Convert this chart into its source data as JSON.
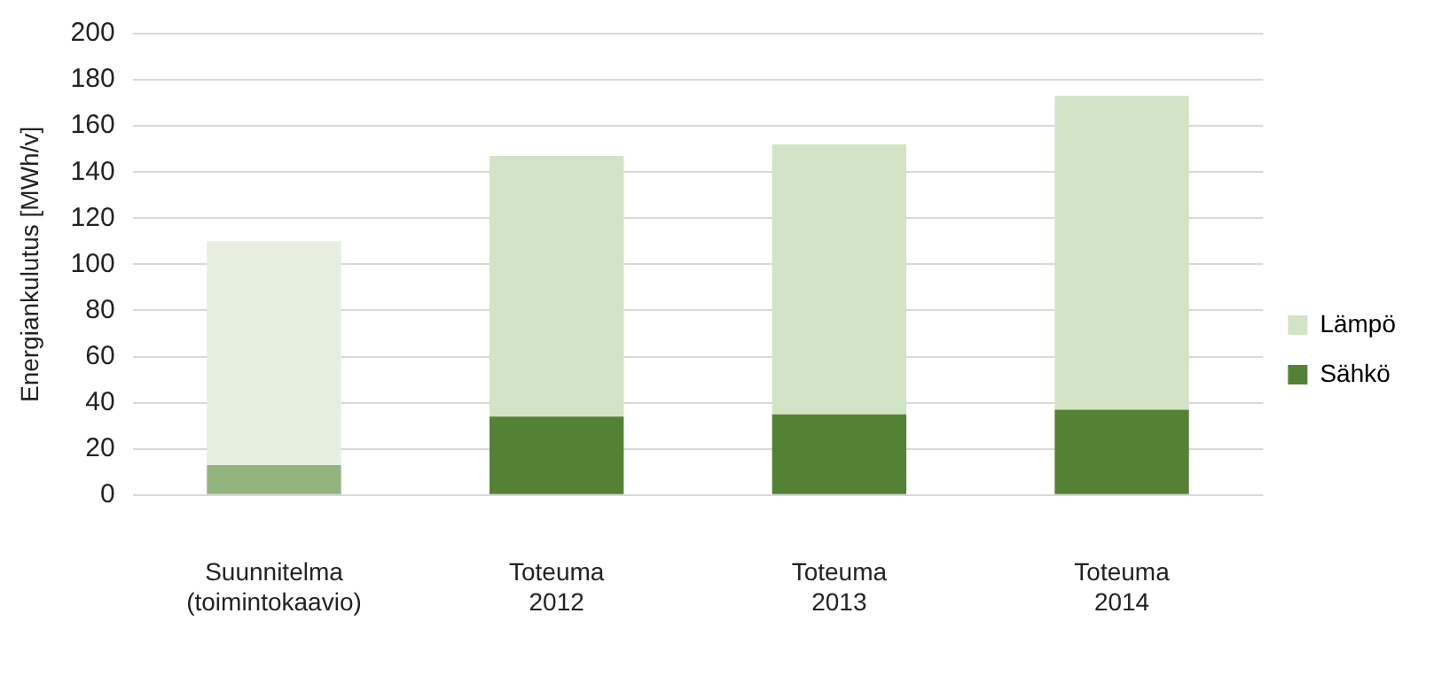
{
  "chart_data": {
    "type": "bar",
    "stacked": true,
    "ylabel": "Energiankulutus [MWh/v]",
    "categories": [
      "Suunnitelma\n(toimintokaavio)",
      "Toteuma\n2012",
      "Toteuma\n2013",
      "Toteuma\n2014"
    ],
    "series": [
      {
        "name": "Sähkö",
        "color": "#548235",
        "colors": [
          "#93b47e",
          "#548235",
          "#548235",
          "#548235"
        ],
        "values": [
          13,
          34,
          35,
          37
        ]
      },
      {
        "name": "Lämpö",
        "color": "#d3e3c6",
        "colors": [
          "#e6eedf",
          "#d3e3c6",
          "#d3e3c6",
          "#d3e3c6"
        ],
        "values": [
          97,
          113,
          117,
          136
        ]
      }
    ],
    "ylim": [
      0,
      200
    ],
    "yticks": [
      0,
      20,
      40,
      60,
      80,
      100,
      120,
      140,
      160,
      180,
      200
    ],
    "grid": "y",
    "legend": "right"
  }
}
